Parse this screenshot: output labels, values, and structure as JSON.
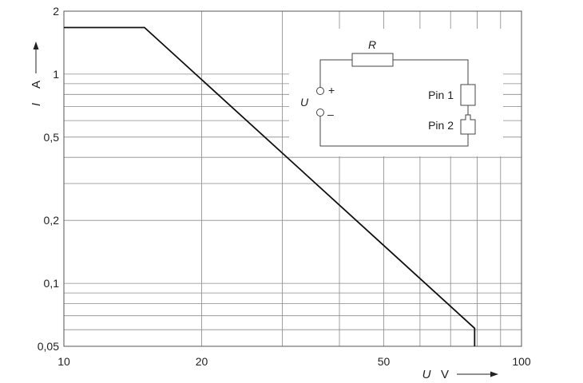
{
  "chart_data": {
    "type": "line",
    "title": "",
    "x_scale": "log",
    "y_scale": "log",
    "xlim": [
      10,
      100
    ],
    "ylim": [
      0.05,
      2
    ],
    "xlabel_symbol": "U",
    "xlabel_unit": "V",
    "ylabel_symbol": "I",
    "ylabel_unit": "A",
    "x_tick_labels": [
      "10",
      "20",
      "50",
      "100"
    ],
    "x_tick_values": [
      10,
      20,
      50,
      100
    ],
    "y_tick_labels": [
      "0,05",
      "0,1",
      "0,2",
      "0,5",
      "1",
      "2"
    ],
    "y_tick_values": [
      0.05,
      0.1,
      0.2,
      0.5,
      1,
      2
    ],
    "x_grid": [
      20,
      30,
      40,
      50,
      60,
      70,
      80,
      90
    ],
    "y_grid": [
      0.06,
      0.07,
      0.08,
      0.09,
      0.1,
      0.2,
      0.3,
      0.4,
      0.5,
      0.6,
      0.7,
      0.8,
      0.9,
      1
    ],
    "grid": true,
    "series": [
      {
        "x": [
          10,
          15,
          79,
          79
        ],
        "y": [
          1.67,
          1.67,
          0.061,
          0.05
        ]
      }
    ],
    "inset_diagram": {
      "resistor_label": "R",
      "source_label": "U",
      "plus_label": "+",
      "minus_label": "–",
      "pin1_label": "Pin 1",
      "pin2_label": "Pin 2"
    }
  }
}
